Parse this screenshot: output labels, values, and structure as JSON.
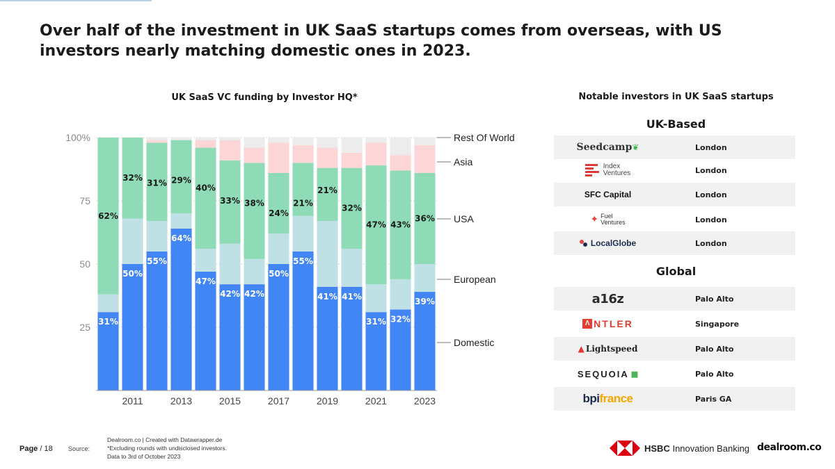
{
  "headline": "Over half of the investment in UK SaaS startups comes from overseas, with US investors nearly matching domestic ones in 2023.",
  "chart_data": {
    "type": "bar",
    "stacked": true,
    "title": "UK SaaS VC funding by Investor HQ*",
    "xlabel": "",
    "ylabel": "",
    "ylim": [
      0,
      100
    ],
    "yticks": [
      25,
      50,
      75,
      100
    ],
    "ytick_labels": [
      "25",
      "50",
      "75",
      "100%"
    ],
    "categories": [
      "2010",
      "2011",
      "2012",
      "2013",
      "2014",
      "2015",
      "2016",
      "2017",
      "2018",
      "2019",
      "2020",
      "2021",
      "2022",
      "2023"
    ],
    "xtick_labels": [
      "2011",
      "2013",
      "2015",
      "2017",
      "2019",
      "2021",
      "2023"
    ],
    "series": [
      {
        "name": "Domestic",
        "color": "#4285f4",
        "label_color": "#ffffff",
        "values": [
          31,
          50,
          55,
          64,
          47,
          42,
          42,
          50,
          55,
          41,
          41,
          31,
          32,
          39
        ],
        "labels": [
          "31%",
          "50%",
          "55%",
          "64%",
          "47%",
          "42%",
          "42%",
          "50%",
          "55%",
          "41%",
          "41%",
          "31%",
          "32%",
          "39%"
        ]
      },
      {
        "name": "European",
        "color": "#bfe0e4",
        "values": [
          7,
          18,
          12,
          6,
          9,
          16,
          10,
          12,
          14,
          26,
          15,
          11,
          12,
          11
        ]
      },
      {
        "name": "USA",
        "color": "#8fdbb7",
        "label_color": "#1a1a1a",
        "values": [
          62,
          32,
          31,
          29,
          40,
          33,
          38,
          24,
          21,
          21,
          32,
          47,
          43,
          36
        ],
        "labels": [
          "62%",
          "32%",
          "31%",
          "29%",
          "40%",
          "33%",
          "38%",
          "24%",
          "21%",
          "21%",
          "32%",
          "47%",
          "43%",
          "36%"
        ]
      },
      {
        "name": "Asia",
        "color": "#fcd6d6",
        "values": [
          0,
          0,
          1,
          0,
          3,
          8,
          6,
          12,
          7,
          8,
          6,
          9,
          6,
          11
        ]
      },
      {
        "name": "Rest Of World",
        "color": "#ececec",
        "values": [
          0,
          0,
          1,
          1,
          1,
          1,
          4,
          2,
          3,
          4,
          6,
          2,
          7,
          3
        ]
      }
    ],
    "legend": [
      "Rest Of World",
      "Asia",
      "USA",
      "European",
      "Domestic"
    ],
    "legend_position": "right"
  },
  "panel": {
    "title": "Notable investors in UK SaaS startups",
    "uk_heading": "UK-Based",
    "global_heading": "Global",
    "uk": [
      {
        "name": "Seedcamp",
        "city": "London"
      },
      {
        "name": "Index Ventures",
        "name_line1": "Index",
        "name_line2": "Ventures",
        "city": "London"
      },
      {
        "name": "SFC Capital",
        "city": "London"
      },
      {
        "name": "Fuel Ventures",
        "name_line1": "Fuel",
        "name_line2": "Ventures",
        "city": "London"
      },
      {
        "name": "LocalGlobe",
        "city": "London"
      }
    ],
    "global": [
      {
        "name": "a16z",
        "city": "Palo Alto"
      },
      {
        "name": "ANTLER",
        "name_rest": "NTLER",
        "city": "Singapore"
      },
      {
        "name": "Lightspeed",
        "city": "Palo Alto"
      },
      {
        "name": "SEQUOIA",
        "city": "Palo Alto"
      },
      {
        "name": "bpifrance",
        "part1": "bpi",
        "part2": "france",
        "city": "Paris GA"
      }
    ]
  },
  "footer": {
    "page_label": "Page",
    "page_sep": " / ",
    "page_number": "18",
    "source_label": "Source:",
    "source_line1": "Dealroom.co | Created with Datawrapper.de",
    "source_line2": "*Excluding rounds with undisclosed investors.",
    "source_line3": "Data to 3rd of October 2023",
    "hsbc_bold": "HSBC",
    "hsbc_rest": " Innovation Banking",
    "dealroom": "dealroom.co"
  }
}
